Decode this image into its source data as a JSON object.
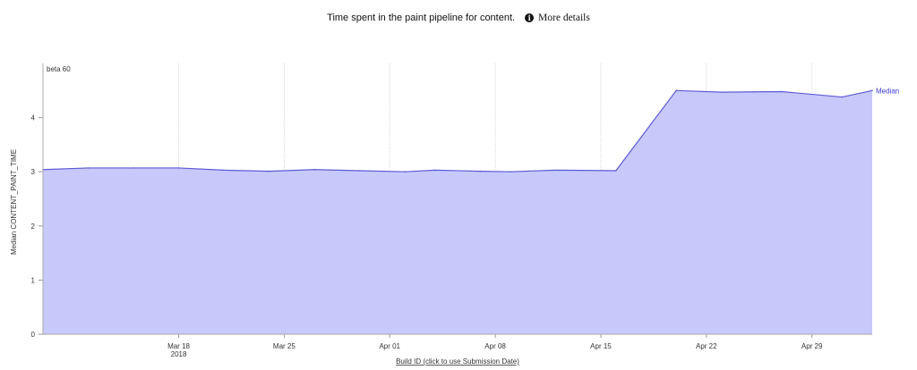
{
  "header": {
    "title": "Time spent in the paint pipeline for content.",
    "more_details": "More details",
    "info_icon": "info-icon"
  },
  "chart_data": {
    "type": "area",
    "ylabel": "Median CONTENT_PAINT_TIME",
    "xlabel": "Build ID (click to use Submission Date)",
    "ylim": [
      0,
      5
    ],
    "y_ticks": [
      "0",
      "1",
      "2",
      "3",
      "4"
    ],
    "x_range": [
      "2018-03-09",
      "2018-05-03"
    ],
    "x_ticks": [
      {
        "date": "2018-03-18",
        "label": "Mar 18",
        "sublabel": "2018"
      },
      {
        "date": "2018-03-25",
        "label": "Mar 25",
        "sublabel": ""
      },
      {
        "date": "2018-04-01",
        "label": "Apr 01",
        "sublabel": ""
      },
      {
        "date": "2018-04-08",
        "label": "Apr 08",
        "sublabel": ""
      },
      {
        "date": "2018-04-15",
        "label": "Apr 15",
        "sublabel": ""
      },
      {
        "date": "2018-04-22",
        "label": "Apr 22",
        "sublabel": ""
      },
      {
        "date": "2018-04-29",
        "label": "Apr 29",
        "sublabel": ""
      }
    ],
    "marker": {
      "date": "2018-03-09",
      "label": "beta 60"
    },
    "grid": true,
    "series": [
      {
        "name": "Median",
        "color": "#5b5bd6",
        "fill": "#c8c9fb",
        "points": [
          {
            "x": "2018-03-09",
            "y": 3.04
          },
          {
            "x": "2018-03-12",
            "y": 3.07
          },
          {
            "x": "2018-03-15",
            "y": 3.07
          },
          {
            "x": "2018-03-18",
            "y": 3.07
          },
          {
            "x": "2018-03-21",
            "y": 3.03
          },
          {
            "x": "2018-03-24",
            "y": 3.01
          },
          {
            "x": "2018-03-27",
            "y": 3.04
          },
          {
            "x": "2018-03-30",
            "y": 3.02
          },
          {
            "x": "2018-04-02",
            "y": 3.0
          },
          {
            "x": "2018-04-04",
            "y": 3.03
          },
          {
            "x": "2018-04-07",
            "y": 3.01
          },
          {
            "x": "2018-04-09",
            "y": 3.0
          },
          {
            "x": "2018-04-12",
            "y": 3.03
          },
          {
            "x": "2018-04-16",
            "y": 3.02
          },
          {
            "x": "2018-04-20",
            "y": 4.5
          },
          {
            "x": "2018-04-23",
            "y": 4.47
          },
          {
            "x": "2018-04-27",
            "y": 4.48
          },
          {
            "x": "2018-05-01",
            "y": 4.38
          },
          {
            "x": "2018-05-03",
            "y": 4.5
          }
        ]
      }
    ]
  }
}
